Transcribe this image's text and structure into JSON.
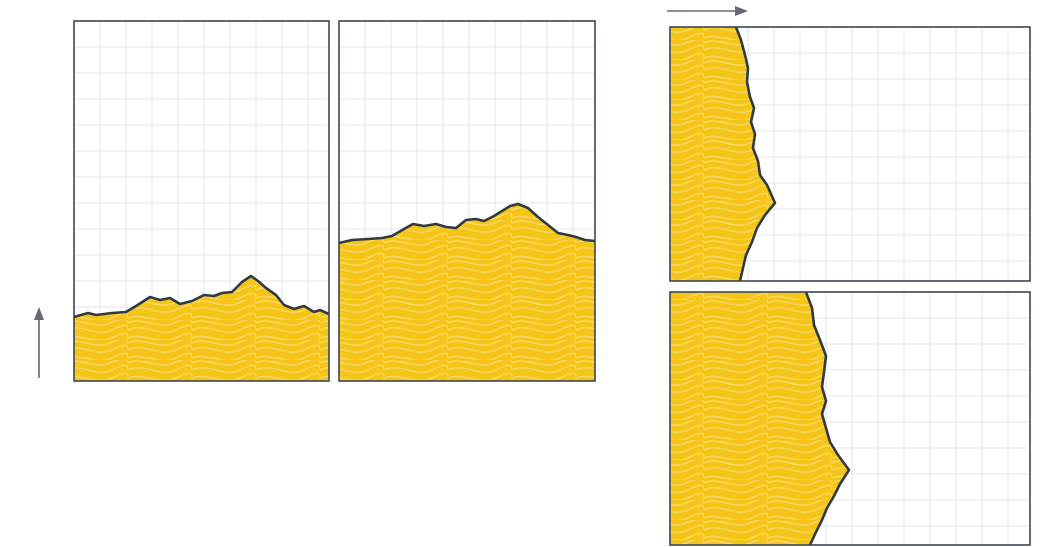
{
  "diagram": {
    "panels": [
      {
        "id": "vertical-low",
        "direction": "up",
        "fill_level": 0.18
      },
      {
        "id": "vertical-high",
        "direction": "up",
        "fill_level": 0.4
      },
      {
        "id": "horizontal-low",
        "direction": "right",
        "fill_level": 0.27
      },
      {
        "id": "horizontal-high",
        "direction": "right",
        "fill_level": 0.42
      }
    ],
    "arrows": [
      {
        "id": "up-arrow",
        "icon": "arrow-up-icon"
      },
      {
        "id": "right-arrow",
        "icon": "arrow-right-icon"
      }
    ],
    "colors": {
      "fill": "#f5c518",
      "pattern": "#f8dc72",
      "grid": "#e3e5ea",
      "border": "#3b4654",
      "profile": "#2f3a42",
      "arrow": "#666a70",
      "background": "#ffffff"
    }
  }
}
